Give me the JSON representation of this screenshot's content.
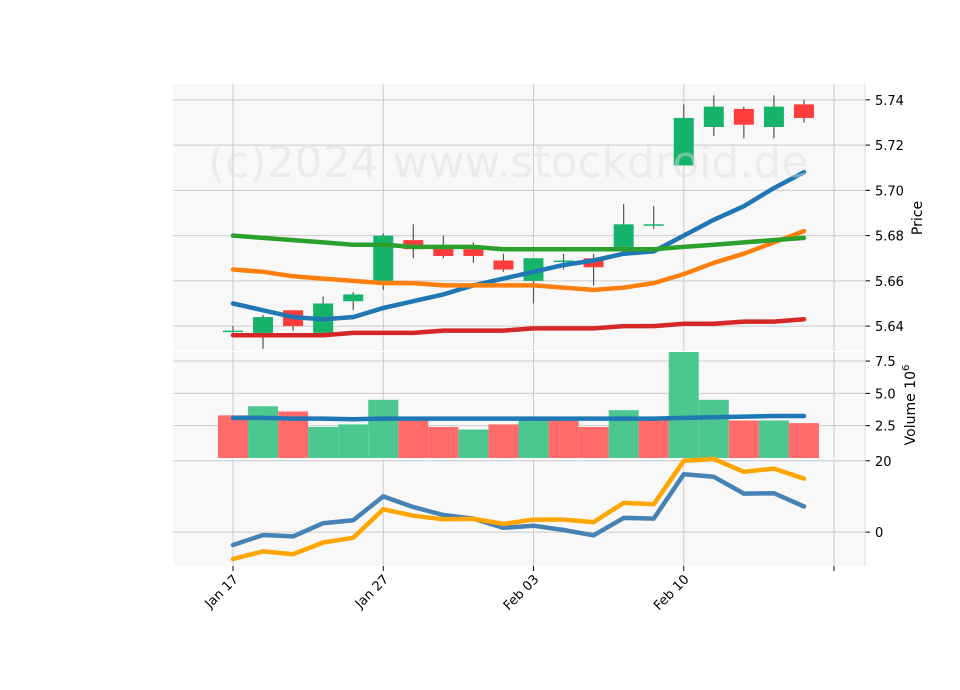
{
  "watermark": "(c)2024 www.stockdroid.de",
  "colors": {
    "up": "#16b36b",
    "down": "#ff3b3b",
    "wick": "#555555",
    "ma_fast": "#1f77b4",
    "ma_mid": "#ff7f0e",
    "ma_slow": "#2ca02c",
    "ma_long": "#d62728",
    "vol_up": "#4cc790",
    "vol_down": "#ff6b6b",
    "vol_ma": "#1f77b4",
    "osc_a": "#4682b4",
    "osc_b": "#ffa500",
    "panel_bg": "#f8f8f8",
    "grid": "#cccccc"
  },
  "chart_data": [
    {
      "type": "candlestick",
      "panel": "price",
      "ylabel": "Price",
      "ylim": [
        5.629,
        5.747
      ],
      "yticks": [
        "5.64",
        "5.66",
        "5.68",
        "5.70",
        "5.72",
        "5.74"
      ],
      "ytick_values": [
        5.64,
        5.66,
        5.68,
        5.7,
        5.72,
        5.74
      ],
      "x_tick_labels": [
        "Jan 17",
        "Jan 27",
        "Feb 03",
        "Feb 10"
      ],
      "x_tick_indices": [
        0,
        5,
        10,
        15
      ],
      "extra_x_tick_index": 20,
      "candles": [
        {
          "o": 5.638,
          "h": 5.64,
          "l": 5.637,
          "c": 5.638
        },
        {
          "o": 5.637,
          "h": 5.645,
          "l": 5.63,
          "c": 5.644
        },
        {
          "o": 5.647,
          "h": 5.647,
          "l": 5.638,
          "c": 5.64
        },
        {
          "o": 5.637,
          "h": 5.653,
          "l": 5.636,
          "c": 5.65
        },
        {
          "o": 5.651,
          "h": 5.655,
          "l": 5.647,
          "c": 5.654
        },
        {
          "o": 5.66,
          "h": 5.681,
          "l": 5.656,
          "c": 5.68
        },
        {
          "o": 5.678,
          "h": 5.685,
          "l": 5.67,
          "c": 5.674
        },
        {
          "o": 5.675,
          "h": 5.68,
          "l": 5.67,
          "c": 5.671
        },
        {
          "o": 5.674,
          "h": 5.677,
          "l": 5.668,
          "c": 5.671
        },
        {
          "o": 5.669,
          "h": 5.672,
          "l": 5.664,
          "c": 5.665
        },
        {
          "o": 5.66,
          "h": 5.67,
          "l": 5.65,
          "c": 5.67
        },
        {
          "o": 5.669,
          "h": 5.672,
          "l": 5.665,
          "c": 5.669
        },
        {
          "o": 5.67,
          "h": 5.672,
          "l": 5.658,
          "c": 5.666
        },
        {
          "o": 5.675,
          "h": 5.694,
          "l": 5.674,
          "c": 5.685
        },
        {
          "o": 5.685,
          "h": 5.693,
          "l": 5.683,
          "c": 5.685
        },
        {
          "o": 5.711,
          "h": 5.738,
          "l": 5.711,
          "c": 5.732
        },
        {
          "o": 5.728,
          "h": 5.742,
          "l": 5.724,
          "c": 5.737
        },
        {
          "o": 5.736,
          "h": 5.737,
          "l": 5.723,
          "c": 5.729
        },
        {
          "o": 5.728,
          "h": 5.742,
          "l": 5.723,
          "c": 5.737
        },
        {
          "o": 5.738,
          "h": 5.74,
          "l": 5.73,
          "c": 5.732
        }
      ],
      "series": [
        {
          "key": "ma_fast",
          "values": [
            5.65,
            5.647,
            5.644,
            5.643,
            5.644,
            5.648,
            5.651,
            5.654,
            5.658,
            5.661,
            5.664,
            5.667,
            5.669,
            5.672,
            5.673,
            5.68,
            5.687,
            5.693,
            5.701,
            5.708
          ]
        },
        {
          "key": "ma_mid",
          "values": [
            5.665,
            5.664,
            5.662,
            5.661,
            5.66,
            5.659,
            5.659,
            5.658,
            5.658,
            5.658,
            5.658,
            5.657,
            5.656,
            5.657,
            5.659,
            5.663,
            5.668,
            5.672,
            5.677,
            5.682
          ]
        },
        {
          "key": "ma_slow",
          "values": [
            5.68,
            5.679,
            5.678,
            5.677,
            5.676,
            5.676,
            5.675,
            5.675,
            5.675,
            5.674,
            5.674,
            5.674,
            5.674,
            5.674,
            5.674,
            5.675,
            5.676,
            5.677,
            5.678,
            5.679
          ]
        },
        {
          "key": "ma_long",
          "values": [
            5.636,
            5.636,
            5.636,
            5.636,
            5.637,
            5.637,
            5.637,
            5.638,
            5.638,
            5.638,
            5.639,
            5.639,
            5.639,
            5.64,
            5.64,
            5.641,
            5.641,
            5.642,
            5.642,
            5.643
          ]
        }
      ]
    },
    {
      "type": "bar",
      "panel": "volume",
      "ylabel": "Volume  10^6",
      "ylim": [
        0,
        8.2
      ],
      "yticks": [
        "2.5",
        "5.0",
        "7.5"
      ],
      "ytick_values": [
        2.5,
        5.0,
        7.5
      ],
      "values": [
        3.3,
        4.0,
        3.6,
        2.4,
        2.6,
        4.5,
        2.9,
        2.4,
        2.2,
        2.6,
        2.9,
        2.9,
        2.4,
        3.7,
        2.9,
        8.2,
        4.5,
        2.9,
        2.9,
        2.7
      ],
      "up": [
        false,
        true,
        false,
        true,
        true,
        true,
        false,
        false,
        true,
        false,
        true,
        false,
        false,
        true,
        false,
        true,
        true,
        false,
        true,
        false
      ],
      "series": [
        {
          "key": "vol_ma",
          "values": [
            3.1,
            3.1,
            3.05,
            3.05,
            3.0,
            3.05,
            3.05,
            3.05,
            3.05,
            3.05,
            3.05,
            3.05,
            3.05,
            3.05,
            3.05,
            3.1,
            3.15,
            3.2,
            3.25,
            3.25
          ]
        }
      ]
    },
    {
      "type": "line",
      "panel": "oscillator",
      "ylim": [
        -9.5,
        20.5
      ],
      "yticks": [
        "0",
        "20"
      ],
      "ytick_values": [
        0,
        20
      ],
      "series": [
        {
          "key": "osc_a",
          "values": [
            -3.6,
            -0.8,
            -1.2,
            2.5,
            3.3,
            10.0,
            7.0,
            4.8,
            3.8,
            1.2,
            1.8,
            0.6,
            -0.9,
            4.0,
            3.8,
            16.2,
            15.5,
            10.8,
            10.9,
            7.2
          ]
        },
        {
          "key": "osc_b",
          "values": [
            -7.5,
            -5.4,
            -6.2,
            -2.9,
            -1.6,
            6.4,
            4.6,
            3.6,
            3.7,
            2.3,
            3.5,
            3.5,
            2.8,
            8.2,
            7.8,
            20.0,
            20.5,
            16.9,
            17.8,
            15.0
          ]
        }
      ]
    }
  ]
}
